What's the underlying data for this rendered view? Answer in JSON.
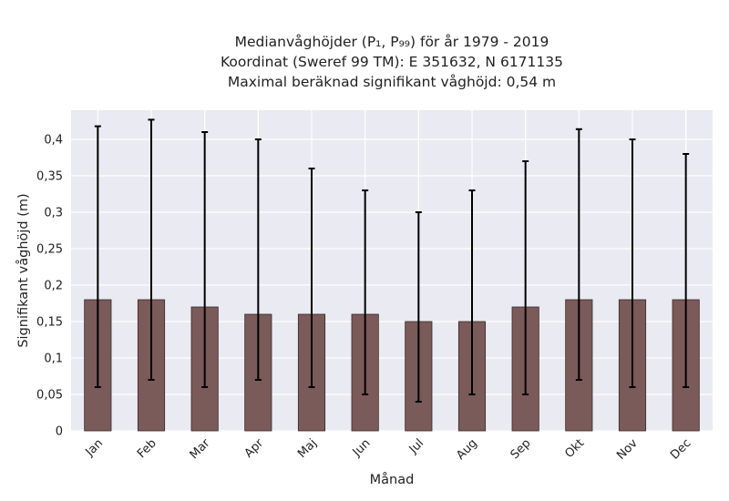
{
  "chart_data": {
    "type": "bar",
    "title_lines": [
      "Medianvåghöjder (P₁, P₉₉) för år 1979 - 2019",
      "Koordinat (Sweref 99 TM): E 351632, N 6171135",
      "Maximal beräknad signifikant våghöjd: 0,54 m"
    ],
    "xlabel": "Månad",
    "ylabel": "Signifikant våghöjd (m)",
    "categories": [
      "Jan",
      "Feb",
      "Mar",
      "Apr",
      "Maj",
      "Jun",
      "Jul",
      "Aug",
      "Sep",
      "Okt",
      "Nov",
      "Dec"
    ],
    "values": [
      0.18,
      0.18,
      0.17,
      0.16,
      0.16,
      0.16,
      0.15,
      0.15,
      0.17,
      0.18,
      0.18,
      0.18
    ],
    "error_low": [
      0.06,
      0.07,
      0.06,
      0.07,
      0.06,
      0.05,
      0.04,
      0.05,
      0.05,
      0.07,
      0.06,
      0.06
    ],
    "error_high": [
      0.418,
      0.427,
      0.41,
      0.4,
      0.36,
      0.33,
      0.3,
      0.33,
      0.37,
      0.414,
      0.4,
      0.38
    ],
    "ylim": [
      0,
      0.44
    ],
    "yticks": [
      0,
      0.05,
      0.1,
      0.15,
      0.2,
      0.25,
      0.3,
      0.35,
      0.4
    ],
    "ytick_labels": [
      "0",
      "0,05",
      "0,1",
      "0,15",
      "0,2",
      "0,25",
      "0,3",
      "0,35",
      "0,4"
    ],
    "grid": true,
    "colors": {
      "plot_background": "#eaeaf2",
      "grid": "#ffffff",
      "bar_fill": "#7b5a5a",
      "bar_edge": "#3a2a2a",
      "error_bar": "#000000"
    }
  }
}
